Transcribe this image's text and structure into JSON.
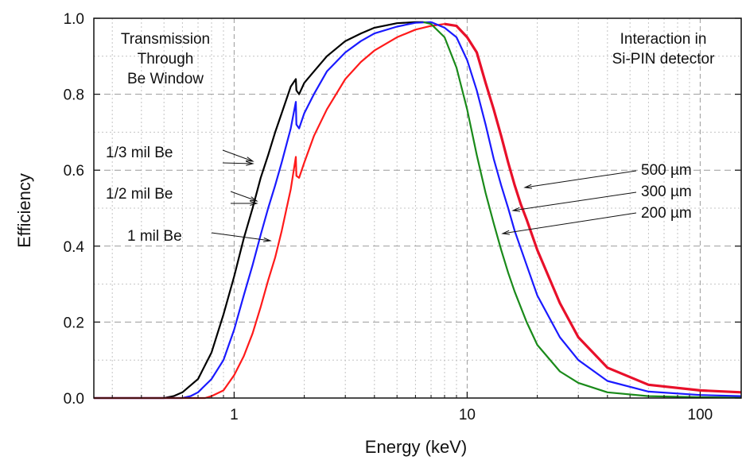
{
  "chart_data": {
    "type": "line",
    "xlabel": "Energy (keV)",
    "ylabel": "Efficiency",
    "xscale": "log",
    "xlim": [
      0.25,
      150
    ],
    "ylim": [
      0.0,
      1.0
    ],
    "grid": true,
    "x_ticks": [
      {
        "value": 1,
        "label": "1"
      },
      {
        "value": 10,
        "label": "10"
      },
      {
        "value": 100,
        "label": "100"
      }
    ],
    "y_ticks": [
      {
        "value": 0.0,
        "label": "0.0"
      },
      {
        "value": 0.2,
        "label": "0.2"
      },
      {
        "value": 0.4,
        "label": "0.4"
      },
      {
        "value": 0.6,
        "label": "0.6"
      },
      {
        "value": 0.8,
        "label": "0.8"
      },
      {
        "value": 1.0,
        "label": "1.0"
      }
    ],
    "annotations": {
      "left_box": [
        "Transmission",
        "Through",
        "Be Window"
      ],
      "right_box": [
        "Interaction in",
        "Si-PIN detector"
      ],
      "window_labels": [
        "1/3 mil Be",
        "1/2 mil Be",
        "1 mil Be"
      ],
      "detector_labels": [
        "500 µm",
        "300 µm",
        "200 µm"
      ]
    },
    "colors": {
      "black": "#000000",
      "blue": "#1a1aff",
      "red": "#ff1a1a",
      "green": "#1a8a1a",
      "red_thick": "#e8102a"
    },
    "series": [
      {
        "color": "#000000",
        "points": [
          [
            0.25,
            0
          ],
          [
            0.5,
            0
          ],
          [
            0.55,
            0.005
          ],
          [
            0.6,
            0.015
          ],
          [
            0.7,
            0.05
          ],
          [
            0.8,
            0.12
          ],
          [
            0.9,
            0.22
          ],
          [
            1.0,
            0.32
          ],
          [
            1.1,
            0.42
          ],
          [
            1.2,
            0.5
          ],
          [
            1.3,
            0.58
          ],
          [
            1.4,
            0.64
          ],
          [
            1.5,
            0.7
          ],
          [
            1.6,
            0.75
          ],
          [
            1.75,
            0.82
          ],
          [
            1.84,
            0.84
          ],
          [
            1.85,
            0.81
          ],
          [
            1.9,
            0.8
          ],
          [
            2.0,
            0.83
          ],
          [
            2.2,
            0.86
          ],
          [
            2.5,
            0.9
          ],
          [
            3.0,
            0.94
          ],
          [
            3.5,
            0.96
          ],
          [
            4.0,
            0.975
          ],
          [
            5.0,
            0.987
          ],
          [
            6.0,
            0.99
          ],
          [
            6.5,
            0.99
          ]
        ]
      },
      {
        "color": "#1a1aff",
        "points": [
          [
            0.25,
            0
          ],
          [
            0.6,
            0
          ],
          [
            0.65,
            0.005
          ],
          [
            0.7,
            0.015
          ],
          [
            0.8,
            0.05
          ],
          [
            0.9,
            0.1
          ],
          [
            1.0,
            0.18
          ],
          [
            1.1,
            0.27
          ],
          [
            1.2,
            0.35
          ],
          [
            1.3,
            0.43
          ],
          [
            1.4,
            0.5
          ],
          [
            1.5,
            0.56
          ],
          [
            1.6,
            0.62
          ],
          [
            1.75,
            0.71
          ],
          [
            1.84,
            0.78
          ],
          [
            1.85,
            0.72
          ],
          [
            1.9,
            0.71
          ],
          [
            2.0,
            0.75
          ],
          [
            2.2,
            0.8
          ],
          [
            2.5,
            0.86
          ],
          [
            3.0,
            0.91
          ],
          [
            3.5,
            0.94
          ],
          [
            4.0,
            0.96
          ],
          [
            5.0,
            0.978
          ],
          [
            6.0,
            0.988
          ],
          [
            7.0,
            0.99
          ]
        ]
      },
      {
        "color": "#ff1a1a",
        "points": [
          [
            0.25,
            0
          ],
          [
            0.75,
            0
          ],
          [
            0.8,
            0.005
          ],
          [
            0.9,
            0.02
          ],
          [
            1.0,
            0.06
          ],
          [
            1.1,
            0.11
          ],
          [
            1.2,
            0.17
          ],
          [
            1.3,
            0.24
          ],
          [
            1.4,
            0.31
          ],
          [
            1.5,
            0.37
          ],
          [
            1.6,
            0.44
          ],
          [
            1.75,
            0.55
          ],
          [
            1.84,
            0.635
          ],
          [
            1.85,
            0.585
          ],
          [
            1.9,
            0.58
          ],
          [
            2.0,
            0.62
          ],
          [
            2.2,
            0.69
          ],
          [
            2.5,
            0.76
          ],
          [
            3.0,
            0.84
          ],
          [
            3.5,
            0.885
          ],
          [
            4.0,
            0.915
          ],
          [
            5.0,
            0.95
          ],
          [
            6.0,
            0.97
          ],
          [
            7.0,
            0.98
          ],
          [
            8.0,
            0.985
          ]
        ]
      },
      {
        "color": "#1a8a1a",
        "points": [
          [
            6.5,
            0.99
          ],
          [
            7.0,
            0.985
          ],
          [
            8.0,
            0.95
          ],
          [
            9.0,
            0.87
          ],
          [
            10.0,
            0.76
          ],
          [
            11.0,
            0.64
          ],
          [
            12.0,
            0.54
          ],
          [
            13.0,
            0.46
          ],
          [
            14.0,
            0.39
          ],
          [
            15.0,
            0.33
          ],
          [
            16.0,
            0.28
          ],
          [
            18.0,
            0.2
          ],
          [
            20.0,
            0.14
          ],
          [
            25.0,
            0.07
          ],
          [
            30.0,
            0.04
          ],
          [
            40.0,
            0.015
          ],
          [
            60.0,
            0.005
          ],
          [
            100.0,
            0.002
          ],
          [
            150.0,
            0.001
          ]
        ]
      },
      {
        "color": "#1a1aff",
        "points": [
          [
            7.0,
            0.99
          ],
          [
            8.0,
            0.975
          ],
          [
            9.0,
            0.95
          ],
          [
            10.0,
            0.89
          ],
          [
            11.0,
            0.81
          ],
          [
            12.0,
            0.72
          ],
          [
            13.0,
            0.63
          ],
          [
            14.0,
            0.56
          ],
          [
            15.0,
            0.5
          ],
          [
            16.0,
            0.44
          ],
          [
            18.0,
            0.35
          ],
          [
            20.0,
            0.27
          ],
          [
            25.0,
            0.16
          ],
          [
            30.0,
            0.1
          ],
          [
            40.0,
            0.045
          ],
          [
            60.0,
            0.017
          ],
          [
            100.0,
            0.008
          ],
          [
            150.0,
            0.005
          ]
        ]
      },
      {
        "color": "#e8102a",
        "points": [
          [
            8.0,
            0.985
          ],
          [
            9.0,
            0.98
          ],
          [
            10.0,
            0.95
          ],
          [
            11.0,
            0.91
          ],
          [
            12.0,
            0.83
          ],
          [
            13.0,
            0.76
          ],
          [
            14.0,
            0.69
          ],
          [
            15.0,
            0.62
          ],
          [
            16.0,
            0.56
          ],
          [
            17.0,
            0.51
          ],
          [
            18.0,
            0.47
          ],
          [
            20.0,
            0.39
          ],
          [
            25.0,
            0.25
          ],
          [
            30.0,
            0.16
          ],
          [
            40.0,
            0.08
          ],
          [
            60.0,
            0.035
          ],
          [
            100.0,
            0.02
          ],
          [
            150.0,
            0.015
          ]
        ]
      }
    ]
  }
}
